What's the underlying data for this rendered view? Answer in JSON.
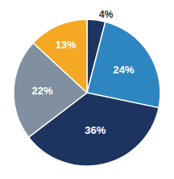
{
  "chart_data": {
    "type": "pie",
    "values": [
      4,
      24,
      36,
      22,
      13
    ],
    "value_labels": [
      "4%",
      "24%",
      "36%",
      "22%",
      "13%"
    ],
    "colors": [
      "#1d3461",
      "#2e86c1",
      "#1d3461",
      "#8090a0",
      "#f5a824"
    ],
    "data_labels": true,
    "legend": false
  }
}
